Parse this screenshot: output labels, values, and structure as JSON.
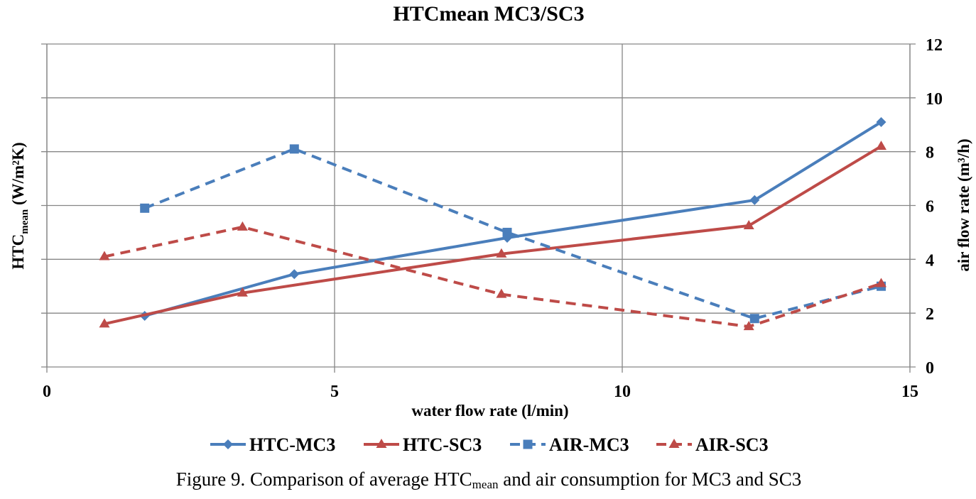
{
  "chart_data": {
    "type": "line",
    "title": "HTCmean MC3/SC3",
    "xlabel": "water flow rate (l/min)",
    "ylabel_left": {
      "main": "HTC",
      "sub": "mean",
      "unit": " (W/m²K)"
    },
    "ylabel_right": "air flow rate (m³/h)",
    "xlim": [
      0,
      15
    ],
    "ylim_right": [
      0,
      12
    ],
    "ylim_left_gridlines": 6,
    "x_ticks": [
      "0",
      "5",
      "10",
      "15"
    ],
    "x_tick_values": [
      0,
      5,
      10,
      15
    ],
    "y_right_ticks": [
      "0",
      "2",
      "4",
      "6",
      "8",
      "10",
      "12"
    ],
    "y_right_tick_values": [
      0,
      2,
      4,
      6,
      8,
      10,
      12
    ],
    "y_left_ticks": [],
    "grid": true,
    "legend_position": "bottom",
    "note": "Left axis (HTC) has no tick labels; HTC values expressed in units of the shared gridline scale (0-12).",
    "series": [
      {
        "name": "HTC-MC3",
        "axis": "left",
        "color": "#4a7ebb",
        "dash": false,
        "marker": "diamond",
        "x": [
          1.7,
          4.3,
          8.0,
          12.3,
          14.5
        ],
        "y": [
          1.9,
          3.45,
          4.8,
          6.2,
          9.1
        ]
      },
      {
        "name": "HTC-SC3",
        "axis": "left",
        "color": "#be4b48",
        "dash": false,
        "marker": "triangle",
        "x": [
          1.0,
          3.4,
          7.9,
          12.2,
          14.5
        ],
        "y": [
          1.6,
          2.75,
          4.2,
          5.25,
          8.2
        ]
      },
      {
        "name": "AIR-MC3",
        "axis": "right",
        "color": "#4a7ebb",
        "dash": true,
        "marker": "square",
        "x": [
          1.7,
          4.3,
          8.0,
          12.3,
          14.5
        ],
        "y": [
          5.9,
          8.1,
          5.0,
          1.8,
          3.0
        ]
      },
      {
        "name": "AIR-SC3",
        "axis": "right",
        "color": "#be4b48",
        "dash": true,
        "marker": "triangle",
        "x": [
          1.0,
          3.4,
          7.9,
          12.2,
          14.5
        ],
        "y": [
          4.1,
          5.2,
          2.7,
          1.5,
          3.1
        ]
      }
    ]
  },
  "caption": {
    "prefix": "Figure 9. Comparison of average HTC",
    "sub": "mean",
    "suffix": " and air consumption for MC3 and SC3"
  },
  "colors": {
    "grid": "#868686",
    "text": "#000000"
  }
}
